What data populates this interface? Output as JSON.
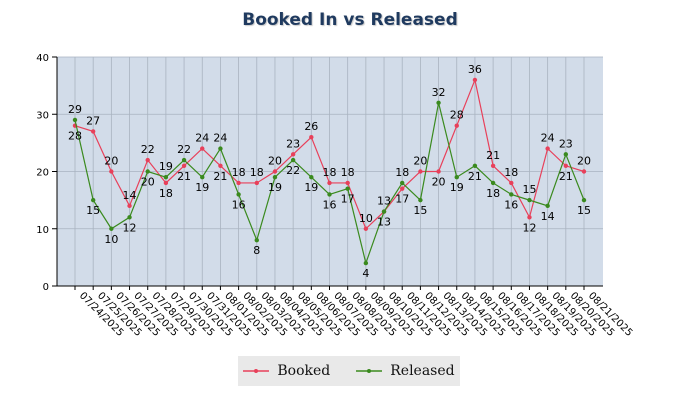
{
  "chart_data": {
    "type": "line",
    "title": "Booked In vs Released",
    "xlabel": "",
    "ylabel": "",
    "ylim": [
      0,
      40
    ],
    "yticks": [
      0,
      10,
      20,
      30,
      40
    ],
    "grid": true,
    "legend": "bottom-center",
    "categories": [
      "07/24/2025",
      "07/25/2025",
      "07/26/2025",
      "07/27/2025",
      "07/28/2025",
      "07/29/2025",
      "07/30/2025",
      "07/31/2025",
      "08/01/2025",
      "08/02/2025",
      "08/03/2025",
      "08/04/2025",
      "08/05/2025",
      "08/06/2025",
      "08/07/2025",
      "08/08/2025",
      "08/09/2025",
      "08/10/2025",
      "08/11/2025",
      "08/12/2025",
      "08/13/2025",
      "08/14/2025",
      "08/15/2025",
      "08/16/2025",
      "08/17/2025",
      "08/18/2025",
      "08/19/2025",
      "08/20/2025",
      "08/21/2025"
    ],
    "series": [
      {
        "name": "Booked",
        "color": "#e8405a",
        "values": [
          28,
          27,
          20,
          14,
          22,
          18,
          21,
          24,
          21,
          18,
          18,
          20,
          23,
          26,
          18,
          18,
          10,
          13,
          17,
          20,
          20,
          28,
          36,
          21,
          18,
          12,
          24,
          21,
          20
        ]
      },
      {
        "name": "Released",
        "color": "#3a8a1e",
        "values": [
          29,
          15,
          10,
          12,
          20,
          19,
          22,
          19,
          24,
          16,
          8,
          19,
          22,
          19,
          16,
          17,
          4,
          13,
          18,
          15,
          32,
          19,
          21,
          18,
          16,
          15,
          14,
          23,
          15
        ]
      }
    ]
  }
}
